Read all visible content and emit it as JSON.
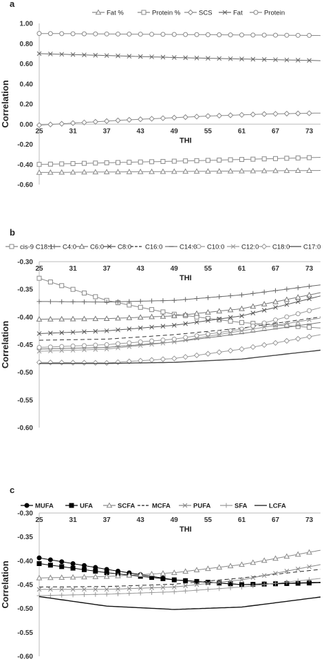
{
  "chart_data": [
    {
      "type": "line",
      "panel_label": "a",
      "xlabel": "THI",
      "ylabel": "Correlation",
      "x_ticks": [
        "25",
        "31",
        "37",
        "43",
        "49",
        "55",
        "61",
        "67",
        "73"
      ],
      "y_ticks": [
        "1.00",
        "0.80",
        "0.60",
        "0.40",
        "0.20",
        "0.00",
        "-0.20",
        "-0.40",
        "-0.60"
      ],
      "xlim": [
        25,
        75
      ],
      "ylim": [
        -0.6,
        1.0
      ],
      "legend_position": "top",
      "series": [
        {
          "name": "Fat %",
          "marker": "triangle",
          "dash": "",
          "color": "#888888",
          "x": [
            25,
            75
          ],
          "values": [
            -0.48,
            -0.46
          ]
        },
        {
          "name": "Protein %",
          "marker": "square",
          "dash": "",
          "color": "#888888",
          "x": [
            25,
            40,
            55,
            75
          ],
          "values": [
            -0.4,
            -0.38,
            -0.36,
            -0.33
          ]
        },
        {
          "name": "SCS",
          "marker": "diamond",
          "dash": "",
          "color": "#888888",
          "x": [
            25,
            40,
            55,
            65,
            75
          ],
          "values": [
            -0.01,
            0.04,
            0.08,
            0.1,
            0.11
          ]
        },
        {
          "name": "Fat",
          "marker": "x",
          "dash": "",
          "color": "#666666",
          "x": [
            25,
            50,
            75
          ],
          "values": [
            0.7,
            0.66,
            0.63
          ]
        },
        {
          "name": "Protein",
          "marker": "circle",
          "dash": "",
          "color": "#888888",
          "x": [
            25,
            50,
            75
          ],
          "values": [
            0.9,
            0.89,
            0.88
          ]
        }
      ]
    },
    {
      "type": "line",
      "panel_label": "b",
      "xlabel": "THI",
      "ylabel": "Correlation",
      "x_ticks": [
        "25",
        "31",
        "37",
        "43",
        "49",
        "55",
        "61",
        "67",
        "73"
      ],
      "y_ticks": [
        "-0.30",
        "-0.35",
        "-0.40",
        "-0.45",
        "-0.50",
        "-0.55",
        "-0.60"
      ],
      "xlim": [
        25,
        75
      ],
      "ylim": [
        -0.6,
        -0.3
      ],
      "legend_position": "top",
      "series": [
        {
          "name": "cis-9 C18:1",
          "marker": "square",
          "dash": "",
          "color": "#888888",
          "x": [
            25,
            37,
            49,
            61,
            75
          ],
          "values": [
            -0.33,
            -0.37,
            -0.395,
            -0.41,
            -0.42
          ]
        },
        {
          "name": "C4:0",
          "marker": "plus",
          "dash": "",
          "color": "#666666",
          "x": [
            25,
            37,
            49,
            61,
            75
          ],
          "values": [
            -0.372,
            -0.373,
            -0.37,
            -0.36,
            -0.342
          ]
        },
        {
          "name": "C6:0",
          "marker": "triangle",
          "dash": "",
          "color": "#777777",
          "x": [
            25,
            37,
            49,
            61,
            75
          ],
          "values": [
            -0.404,
            -0.403,
            -0.398,
            -0.385,
            -0.356
          ]
        },
        {
          "name": "C8:0",
          "marker": "x",
          "dash": "",
          "color": "#555555",
          "x": [
            25,
            37,
            49,
            61,
            75
          ],
          "values": [
            -0.43,
            -0.425,
            -0.415,
            -0.398,
            -0.362
          ]
        },
        {
          "name": "C16:0",
          "marker": "none",
          "dash": "6,4",
          "color": "#333333",
          "x": [
            25,
            37,
            49,
            61,
            75
          ],
          "values": [
            -0.442,
            -0.44,
            -0.432,
            -0.42,
            -0.4
          ]
        },
        {
          "name": "C14:0",
          "marker": "dash",
          "dash": "",
          "color": "#777777",
          "x": [
            25,
            37,
            49,
            61,
            75
          ],
          "values": [
            -0.458,
            -0.455,
            -0.445,
            -0.43,
            -0.41
          ]
        },
        {
          "name": "C10:0",
          "marker": "circle",
          "dash": "",
          "color": "#999999",
          "x": [
            25,
            37,
            49,
            61,
            75
          ],
          "values": [
            -0.455,
            -0.45,
            -0.44,
            -0.422,
            -0.383
          ]
        },
        {
          "name": "C12:0",
          "marker": "x",
          "dash": "",
          "color": "#999999",
          "x": [
            25,
            37,
            49,
            61,
            75
          ],
          "values": [
            -0.462,
            -0.458,
            -0.445,
            -0.425,
            -0.402
          ]
        },
        {
          "name": "C18:0",
          "marker": "diamond",
          "dash": "",
          "color": "#999999",
          "x": [
            25,
            37,
            49,
            61,
            75
          ],
          "values": [
            -0.482,
            -0.483,
            -0.475,
            -0.458,
            -0.432
          ]
        },
        {
          "name": "C17:0",
          "marker": "none",
          "dash": "",
          "color": "#444444",
          "x": [
            25,
            37,
            49,
            61,
            75
          ],
          "values": [
            -0.484,
            -0.484,
            -0.482,
            -0.476,
            -0.46
          ]
        }
      ]
    },
    {
      "type": "line",
      "panel_label": "c",
      "xlabel": "THI",
      "ylabel": "Correlation",
      "x_ticks": [
        "25",
        "31",
        "37",
        "43",
        "49",
        "55",
        "61",
        "67",
        "73"
      ],
      "y_ticks": [
        "-0.30",
        "-0.35",
        "-0.40",
        "-0.45",
        "-0.50",
        "-0.55",
        "-0.60"
      ],
      "xlim": [
        25,
        75
      ],
      "ylim": [
        -0.6,
        -0.3
      ],
      "legend_position": "top",
      "series": [
        {
          "name": "MUFA",
          "marker": "circle",
          "dash": "",
          "color": "#000000",
          "x": [
            25,
            37,
            49,
            61,
            75
          ],
          "values": [
            -0.394,
            -0.418,
            -0.44,
            -0.45,
            -0.445
          ]
        },
        {
          "name": "UFA",
          "marker": "square",
          "dash": "",
          "color": "#000000",
          "x": [
            25,
            37,
            49,
            61,
            75
          ],
          "values": [
            -0.406,
            -0.425,
            -0.44,
            -0.45,
            -0.446
          ]
        },
        {
          "name": "SCFA",
          "marker": "triangle",
          "dash": "",
          "color": "#888888",
          "x": [
            25,
            37,
            49,
            61,
            75
          ],
          "values": [
            -0.436,
            -0.433,
            -0.425,
            -0.408,
            -0.378
          ]
        },
        {
          "name": "MCFA",
          "marker": "none",
          "dash": "6,4",
          "color": "#222222",
          "x": [
            25,
            37,
            49,
            61,
            75
          ],
          "values": [
            -0.455,
            -0.454,
            -0.449,
            -0.436,
            -0.418
          ]
        },
        {
          "name": "PUFA",
          "marker": "x",
          "dash": "",
          "color": "#888888",
          "x": [
            25,
            37,
            49,
            61,
            75
          ],
          "values": [
            -0.46,
            -0.46,
            -0.455,
            -0.44,
            -0.408
          ]
        },
        {
          "name": "SFA",
          "marker": "plus",
          "dash": "",
          "color": "#999999",
          "x": [
            25,
            37,
            49,
            61,
            75
          ],
          "values": [
            -0.473,
            -0.47,
            -0.465,
            -0.455,
            -0.437
          ]
        },
        {
          "name": "LCFA",
          "marker": "none",
          "dash": "",
          "color": "#111111",
          "x": [
            25,
            37,
            49,
            61,
            75
          ],
          "values": [
            -0.475,
            -0.495,
            -0.502,
            -0.497,
            -0.476
          ]
        }
      ]
    }
  ]
}
